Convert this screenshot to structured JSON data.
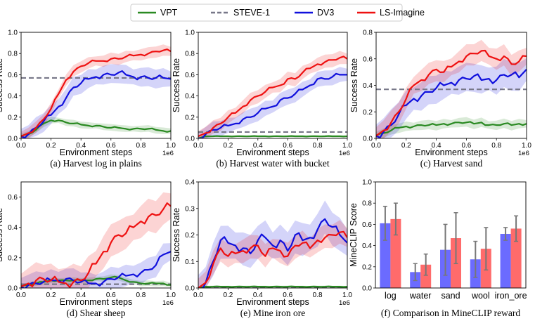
{
  "colors": {
    "VPT": "#2a8a22",
    "STEVE-1": "#777788",
    "DV3": "#1010dd",
    "LS-Imagine": "#ee1111",
    "bar_dv3": "#6b6bff",
    "bar_ls": "#ff6b6b",
    "errbar": "#777777"
  },
  "legend": [
    "VPT",
    "STEVE-1",
    "DV3",
    "LS-Imagine"
  ],
  "chart_data": [
    {
      "type": "line",
      "caption": "(a) Harvest log in plains",
      "xlabel": "Environment steps",
      "ylabel": "Success Rate",
      "x_multiplier": "1e6",
      "xlim": [
        0,
        1.0
      ],
      "ylim": [
        0,
        1.0
      ],
      "xticks": [
        "0.0",
        "0.2",
        "0.4",
        "0.6",
        "0.8",
        "1.0"
      ],
      "yticks": [
        "0.0",
        "0.2",
        "0.4",
        "0.6",
        "0.8",
        "1.0"
      ],
      "x": [
        0,
        0.05,
        0.1,
        0.15,
        0.2,
        0.25,
        0.3,
        0.35,
        0.4,
        0.45,
        0.5,
        0.55,
        0.6,
        0.65,
        0.7,
        0.75,
        0.8,
        0.85,
        0.9,
        0.95,
        1.0
      ],
      "steve1": 0.57,
      "series": [
        {
          "name": "VPT",
          "values": [
            0.02,
            0.04,
            0.08,
            0.14,
            0.17,
            0.17,
            0.15,
            0.14,
            0.13,
            0.12,
            0.12,
            0.11,
            0.1,
            0.1,
            0.09,
            0.09,
            0.09,
            0.09,
            0.08,
            0.07,
            0.07
          ],
          "band": 0.035
        },
        {
          "name": "DV3",
          "values": [
            0.02,
            0.04,
            0.1,
            0.16,
            0.22,
            0.3,
            0.38,
            0.48,
            0.52,
            0.56,
            0.58,
            0.6,
            0.6,
            0.62,
            0.6,
            0.58,
            0.58,
            0.57,
            0.57,
            0.57,
            0.56
          ],
          "band": 0.1
        },
        {
          "name": "LS-Imagine",
          "values": [
            0.02,
            0.05,
            0.1,
            0.18,
            0.28,
            0.42,
            0.55,
            0.63,
            0.68,
            0.71,
            0.73,
            0.73,
            0.75,
            0.75,
            0.77,
            0.78,
            0.79,
            0.8,
            0.82,
            0.83,
            0.82
          ],
          "band": 0.06
        }
      ]
    },
    {
      "type": "line",
      "caption": "(b) Harvest water with bucket",
      "xlabel": "Environment steps",
      "ylabel": "Success Rate",
      "x_multiplier": "1e6",
      "xlim": [
        0,
        1.0
      ],
      "ylim": [
        0,
        1.0
      ],
      "xticks": [
        "0.0",
        "0.2",
        "0.4",
        "0.6",
        "0.8",
        "1.0"
      ],
      "yticks": [
        "0.0",
        "0.2",
        "0.4",
        "0.6",
        "0.8",
        "1.0"
      ],
      "x": [
        0,
        0.05,
        0.1,
        0.15,
        0.2,
        0.25,
        0.3,
        0.35,
        0.4,
        0.45,
        0.5,
        0.55,
        0.6,
        0.65,
        0.7,
        0.75,
        0.8,
        0.85,
        0.9,
        0.95,
        1.0
      ],
      "steve1": 0.06,
      "series": [
        {
          "name": "VPT",
          "values": [
            0.0,
            0.02,
            0.02,
            0.02,
            0.02,
            0.02,
            0.02,
            0.02,
            0.02,
            0.02,
            0.02,
            0.02,
            0.02,
            0.02,
            0.02,
            0.02,
            0.02,
            0.02,
            0.02,
            0.02,
            0.02
          ],
          "band": 0.01
        },
        {
          "name": "DV3",
          "values": [
            0.0,
            0.04,
            0.08,
            0.1,
            0.12,
            0.14,
            0.18,
            0.2,
            0.24,
            0.28,
            0.3,
            0.36,
            0.38,
            0.42,
            0.46,
            0.5,
            0.56,
            0.56,
            0.58,
            0.6,
            0.6
          ],
          "band": 0.08
        },
        {
          "name": "LS-Imagine",
          "values": [
            0.02,
            0.05,
            0.1,
            0.14,
            0.2,
            0.24,
            0.3,
            0.36,
            0.4,
            0.44,
            0.48,
            0.5,
            0.56,
            0.56,
            0.62,
            0.66,
            0.7,
            0.72,
            0.74,
            0.76,
            0.75
          ],
          "band": 0.07
        }
      ]
    },
    {
      "type": "line",
      "caption": "(c) Harvest sand",
      "xlabel": "Environment steps",
      "ylabel": "Success Rate",
      "x_multiplier": "1e6",
      "xlim": [
        0,
        1.0
      ],
      "ylim": [
        0,
        0.8
      ],
      "xticks": [
        "0.0",
        "0.2",
        "0.4",
        "0.6",
        "0.8",
        "1.0"
      ],
      "yticks": [
        "0.0",
        "0.2",
        "0.4",
        "0.6",
        "0.8"
      ],
      "x": [
        0,
        0.05,
        0.1,
        0.15,
        0.2,
        0.25,
        0.3,
        0.35,
        0.4,
        0.45,
        0.5,
        0.55,
        0.6,
        0.65,
        0.7,
        0.75,
        0.8,
        0.85,
        0.9,
        0.95,
        1.0
      ],
      "steve1": 0.37,
      "series": [
        {
          "name": "VPT",
          "values": [
            0.02,
            0.04,
            0.06,
            0.08,
            0.09,
            0.09,
            0.1,
            0.1,
            0.1,
            0.11,
            0.11,
            0.12,
            0.12,
            0.11,
            0.12,
            0.1,
            0.1,
            0.11,
            0.1,
            0.11,
            0.11
          ],
          "band": 0.04
        },
        {
          "name": "DV3",
          "values": [
            0.02,
            0.05,
            0.1,
            0.18,
            0.25,
            0.3,
            0.32,
            0.35,
            0.38,
            0.4,
            0.42,
            0.44,
            0.45,
            0.47,
            0.44,
            0.45,
            0.44,
            0.48,
            0.48,
            0.46,
            0.52
          ],
          "band": 0.12
        },
        {
          "name": "LS-Imagine",
          "values": [
            0.02,
            0.06,
            0.12,
            0.2,
            0.3,
            0.4,
            0.44,
            0.48,
            0.52,
            0.5,
            0.54,
            0.58,
            0.62,
            0.64,
            0.66,
            0.62,
            0.6,
            0.62,
            0.56,
            0.58,
            0.62
          ],
          "band": 0.09
        }
      ]
    },
    {
      "type": "line",
      "caption": "(d) Shear sheep",
      "xlabel": "Environment steps",
      "ylabel": "Success Rate",
      "x_multiplier": "1e6",
      "xlim": [
        0,
        1.0
      ],
      "ylim": [
        0,
        0.7
      ],
      "xticks": [
        "0.0",
        "0.2",
        "0.4",
        "0.6",
        "0.8",
        "1.0"
      ],
      "yticks": [
        "0.0",
        "0.2",
        "0.4",
        "0.6"
      ],
      "x": [
        0,
        0.05,
        0.1,
        0.15,
        0.2,
        0.25,
        0.3,
        0.35,
        0.4,
        0.45,
        0.5,
        0.55,
        0.6,
        0.65,
        0.7,
        0.75,
        0.8,
        0.85,
        0.9,
        0.95,
        1.0
      ],
      "steve1": 0.025,
      "series": [
        {
          "name": "VPT",
          "values": [
            0.01,
            0.02,
            0.03,
            0.04,
            0.05,
            0.05,
            0.05,
            0.05,
            0.05,
            0.05,
            0.06,
            0.06,
            0.07,
            0.07,
            0.05,
            0.04,
            0.03,
            0.03,
            0.03,
            0.03,
            0.02
          ],
          "band": 0.02
        },
        {
          "name": "DV3",
          "values": [
            0.01,
            0.02,
            0.03,
            0.04,
            0.05,
            0.05,
            0.06,
            0.05,
            0.04,
            0.03,
            0.03,
            0.04,
            0.06,
            0.07,
            0.08,
            0.09,
            0.1,
            0.12,
            0.15,
            0.22,
            0.24
          ],
          "band": 0.08
        },
        {
          "name": "LS-Imagine",
          "values": [
            0.01,
            0.03,
            0.05,
            0.06,
            0.05,
            0.04,
            0.03,
            0.04,
            0.05,
            0.1,
            0.16,
            0.24,
            0.3,
            0.35,
            0.36,
            0.4,
            0.44,
            0.47,
            0.48,
            0.52,
            0.54
          ],
          "band": 0.12
        }
      ]
    },
    {
      "type": "line",
      "caption": "(e) Mine iron ore",
      "xlabel": "Environment steps",
      "ylabel": "Success Rate",
      "x_multiplier": "1e6",
      "xlim": [
        0,
        1.0
      ],
      "ylim": [
        0,
        0.4
      ],
      "xticks": [
        "0.0",
        "0.2",
        "0.4",
        "0.6",
        "0.8",
        "1.0"
      ],
      "yticks": [
        "0.0",
        "0.1",
        "0.2",
        "0.3",
        "0.4"
      ],
      "x": [
        0,
        0.05,
        0.1,
        0.15,
        0.2,
        0.25,
        0.3,
        0.35,
        0.4,
        0.45,
        0.5,
        0.55,
        0.6,
        0.65,
        0.7,
        0.75,
        0.8,
        0.85,
        0.9,
        0.95,
        1.0
      ],
      "steve1": 0.0,
      "series": [
        {
          "name": "VPT",
          "values": [
            0.0,
            0.005,
            0.005,
            0.005,
            0.005,
            0.005,
            0.005,
            0.005,
            0.005,
            0.005,
            0.005,
            0.005,
            0.005,
            0.005,
            0.005,
            0.005,
            0.005,
            0.005,
            0.005,
            0.005,
            0.005
          ],
          "band": 0.004
        },
        {
          "name": "DV3",
          "values": [
            0.0,
            0.02,
            0.1,
            0.18,
            0.17,
            0.16,
            0.15,
            0.13,
            0.18,
            0.19,
            0.16,
            0.18,
            0.14,
            0.2,
            0.18,
            0.19,
            0.22,
            0.26,
            0.23,
            0.2,
            0.17
          ],
          "band": 0.07
        },
        {
          "name": "LS-Imagine",
          "values": [
            0.0,
            0.02,
            0.09,
            0.15,
            0.12,
            0.13,
            0.14,
            0.15,
            0.16,
            0.12,
            0.15,
            0.14,
            0.12,
            0.16,
            0.17,
            0.15,
            0.18,
            0.19,
            0.2,
            0.21,
            0.19
          ],
          "band": 0.05
        }
      ]
    },
    {
      "type": "bar",
      "caption": "(f) Comparison in MineCLIP reward",
      "ylabel": "MineCLIP Score",
      "ylim": [
        0,
        1.0
      ],
      "yticks": [
        "0.0",
        "0.2",
        "0.4",
        "0.6",
        "0.8",
        "1.0"
      ],
      "categories": [
        "log",
        "water",
        "sand",
        "wool",
        "iron_ore"
      ],
      "series": [
        {
          "name": "DV3",
          "values": [
            0.61,
            0.15,
            0.36,
            0.27,
            0.51
          ],
          "err": [
            0.16,
            0.08,
            0.24,
            0.17,
            0.06
          ]
        },
        {
          "name": "LS-Imagine",
          "values": [
            0.65,
            0.22,
            0.47,
            0.37,
            0.56
          ],
          "err": [
            0.15,
            0.1,
            0.24,
            0.2,
            0.12
          ]
        }
      ]
    }
  ]
}
